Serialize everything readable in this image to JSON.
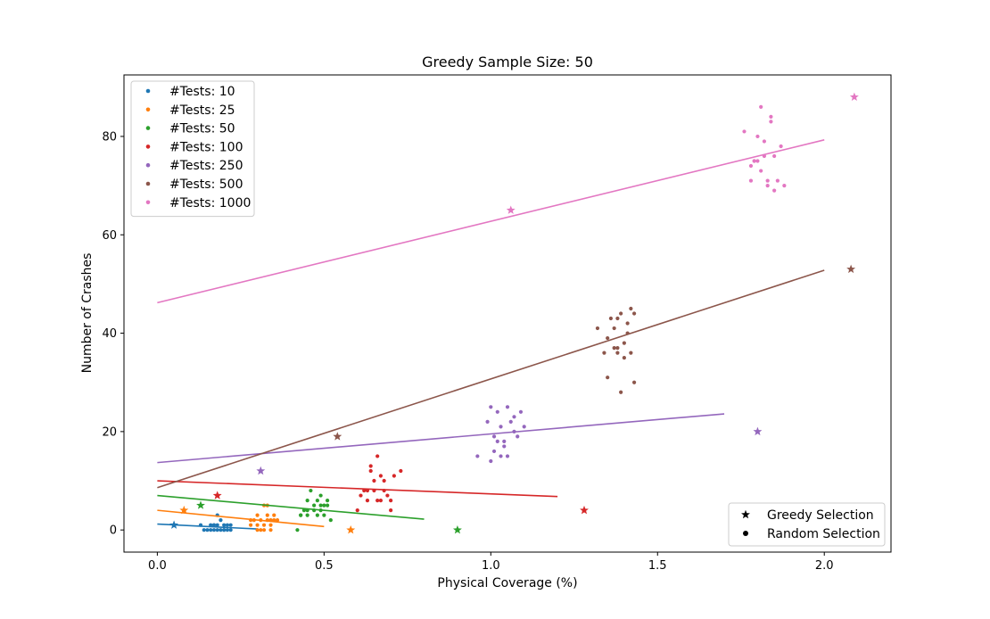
{
  "chart_data": {
    "type": "scatter",
    "title": "Greedy Sample Size: 50",
    "xlabel": "Physical Coverage (%)",
    "ylabel": "Number of Crashes",
    "xlim": [
      -0.1,
      2.2
    ],
    "ylim": [
      -4.5,
      92.5
    ],
    "xticks": [
      0.0,
      0.5,
      1.0,
      1.5,
      2.0
    ],
    "xtick_labels": [
      "0.0",
      "0.5",
      "1.0",
      "1.5",
      "2.0"
    ],
    "yticks": [
      0,
      20,
      40,
      60,
      80
    ],
    "ytick_labels": [
      "0",
      "20",
      "40",
      "60",
      "80"
    ],
    "grid": false,
    "legend_placement": "upper left",
    "marker_legend_placement": "lower right",
    "marker_legend": [
      {
        "label": "Greedy Selection",
        "marker": "star"
      },
      {
        "label": "Random Selection",
        "marker": "circle"
      }
    ],
    "series": [
      {
        "name": "#Tests: 10",
        "color": "#1f77b4",
        "random": [
          [
            0.13,
            1
          ],
          [
            0.15,
            0
          ],
          [
            0.16,
            1
          ],
          [
            0.17,
            0
          ],
          [
            0.17,
            1
          ],
          [
            0.18,
            0
          ],
          [
            0.18,
            1
          ],
          [
            0.19,
            2
          ],
          [
            0.19,
            0
          ],
          [
            0.2,
            1
          ],
          [
            0.2,
            0
          ],
          [
            0.21,
            0
          ],
          [
            0.21,
            1
          ],
          [
            0.22,
            0
          ],
          [
            0.22,
            1
          ],
          [
            0.16,
            0
          ],
          [
            0.18,
            3
          ],
          [
            0.14,
            0
          ],
          [
            0.2,
            0
          ],
          [
            0.17,
            1
          ]
        ],
        "greedy": [
          [
            0.05,
            1
          ]
        ],
        "fit": [
          [
            0.0,
            1.2
          ],
          [
            0.3,
            0.2
          ]
        ]
      },
      {
        "name": "#Tests: 25",
        "color": "#ff7f0e",
        "random": [
          [
            0.28,
            1
          ],
          [
            0.29,
            2
          ],
          [
            0.3,
            0
          ],
          [
            0.3,
            3
          ],
          [
            0.31,
            2
          ],
          [
            0.32,
            1
          ],
          [
            0.32,
            0
          ],
          [
            0.33,
            3
          ],
          [
            0.33,
            2
          ],
          [
            0.34,
            1
          ],
          [
            0.34,
            0
          ],
          [
            0.35,
            3
          ],
          [
            0.35,
            2
          ],
          [
            0.33,
            5
          ],
          [
            0.28,
            2
          ],
          [
            0.31,
            0
          ],
          [
            0.36,
            2
          ],
          [
            0.32,
            5
          ],
          [
            0.3,
            1
          ],
          [
            0.34,
            2
          ]
        ],
        "greedy": [
          [
            0.08,
            4
          ],
          [
            0.58,
            0
          ]
        ],
        "fit": [
          [
            0.0,
            4.0
          ],
          [
            0.5,
            0.7
          ]
        ]
      },
      {
        "name": "#Tests: 50",
        "color": "#2ca02c",
        "random": [
          [
            0.42,
            0
          ],
          [
            0.43,
            3
          ],
          [
            0.44,
            4
          ],
          [
            0.45,
            6
          ],
          [
            0.45,
            3
          ],
          [
            0.46,
            8
          ],
          [
            0.47,
            4
          ],
          [
            0.47,
            5
          ],
          [
            0.48,
            6
          ],
          [
            0.48,
            3
          ],
          [
            0.49,
            5
          ],
          [
            0.49,
            7
          ],
          [
            0.5,
            3
          ],
          [
            0.5,
            5
          ],
          [
            0.51,
            6
          ],
          [
            0.51,
            5
          ],
          [
            0.52,
            2
          ],
          [
            0.45,
            4
          ],
          [
            0.43,
            3
          ],
          [
            0.49,
            4
          ]
        ],
        "greedy": [
          [
            0.13,
            5
          ],
          [
            0.9,
            0
          ]
        ],
        "fit": [
          [
            0.0,
            7.0
          ],
          [
            0.8,
            2.2
          ]
        ]
      },
      {
        "name": "#Tests: 100",
        "color": "#d62728",
        "random": [
          [
            0.6,
            4
          ],
          [
            0.61,
            7
          ],
          [
            0.62,
            8
          ],
          [
            0.63,
            6
          ],
          [
            0.64,
            13
          ],
          [
            0.64,
            12
          ],
          [
            0.65,
            8
          ],
          [
            0.65,
            10
          ],
          [
            0.66,
            15
          ],
          [
            0.66,
            6
          ],
          [
            0.67,
            11
          ],
          [
            0.67,
            6
          ],
          [
            0.68,
            10
          ],
          [
            0.68,
            8
          ],
          [
            0.69,
            7
          ],
          [
            0.7,
            4
          ],
          [
            0.7,
            6
          ],
          [
            0.71,
            11
          ],
          [
            0.73,
            12
          ],
          [
            0.63,
            8
          ]
        ],
        "greedy": [
          [
            0.18,
            7
          ],
          [
            1.28,
            4
          ]
        ],
        "fit": [
          [
            0.0,
            10.0
          ],
          [
            1.2,
            6.8
          ]
        ]
      },
      {
        "name": "#Tests: 250",
        "color": "#9467bd",
        "random": [
          [
            0.96,
            15
          ],
          [
            0.99,
            22
          ],
          [
            1.0,
            25
          ],
          [
            1.0,
            14
          ],
          [
            1.01,
            19
          ],
          [
            1.01,
            16
          ],
          [
            1.02,
            18
          ],
          [
            1.02,
            24
          ],
          [
            1.03,
            21
          ],
          [
            1.03,
            15
          ],
          [
            1.04,
            17
          ],
          [
            1.05,
            15
          ],
          [
            1.05,
            25
          ],
          [
            1.06,
            22
          ],
          [
            1.07,
            20
          ],
          [
            1.07,
            23
          ],
          [
            1.08,
            19
          ],
          [
            1.1,
            21
          ],
          [
            1.09,
            24
          ],
          [
            1.04,
            18
          ]
        ],
        "greedy": [
          [
            0.31,
            12
          ],
          [
            1.8,
            20
          ]
        ],
        "fit": [
          [
            0.0,
            13.7
          ],
          [
            1.7,
            23.6
          ]
        ]
      },
      {
        "name": "#Tests: 500",
        "color": "#8c564b",
        "random": [
          [
            1.32,
            41
          ],
          [
            1.34,
            36
          ],
          [
            1.35,
            31
          ],
          [
            1.35,
            39
          ],
          [
            1.36,
            43
          ],
          [
            1.37,
            37
          ],
          [
            1.38,
            43
          ],
          [
            1.38,
            36
          ],
          [
            1.39,
            44
          ],
          [
            1.39,
            28
          ],
          [
            1.4,
            35
          ],
          [
            1.4,
            38
          ],
          [
            1.41,
            42
          ],
          [
            1.41,
            40
          ],
          [
            1.42,
            36
          ],
          [
            1.42,
            45
          ],
          [
            1.43,
            30
          ],
          [
            1.43,
            44
          ],
          [
            1.38,
            37
          ],
          [
            1.37,
            41
          ]
        ],
        "greedy": [
          [
            0.54,
            19
          ],
          [
            2.08,
            53
          ]
        ],
        "fit": [
          [
            0.0,
            8.6
          ],
          [
            2.0,
            52.8
          ]
        ]
      },
      {
        "name": "#Tests: 1000",
        "color": "#e377c2",
        "random": [
          [
            1.76,
            81
          ],
          [
            1.78,
            74
          ],
          [
            1.78,
            71
          ],
          [
            1.79,
            75
          ],
          [
            1.8,
            80
          ],
          [
            1.81,
            86
          ],
          [
            1.81,
            73
          ],
          [
            1.82,
            79
          ],
          [
            1.82,
            76
          ],
          [
            1.83,
            71
          ],
          [
            1.83,
            70
          ],
          [
            1.84,
            84
          ],
          [
            1.84,
            83
          ],
          [
            1.85,
            76
          ],
          [
            1.85,
            69
          ],
          [
            1.86,
            71
          ],
          [
            1.87,
            78
          ],
          [
            1.88,
            70
          ],
          [
            1.8,
            75
          ],
          [
            1.79,
            75
          ]
        ],
        "greedy": [
          [
            1.06,
            65
          ],
          [
            2.09,
            88
          ]
        ],
        "fit": [
          [
            0.0,
            46.2
          ],
          [
            2.0,
            79.3
          ]
        ]
      }
    ]
  }
}
